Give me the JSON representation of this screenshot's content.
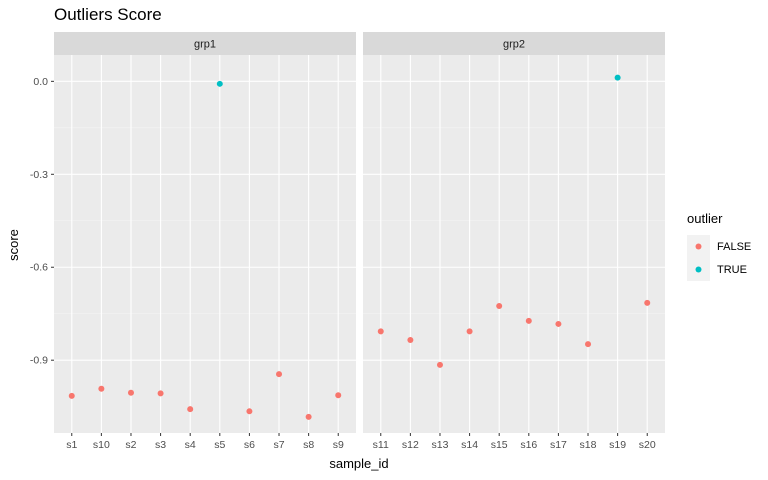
{
  "chart_data": {
    "type": "scatter",
    "title": "Outliers Score",
    "xlabel": "sample_id",
    "ylabel": "score",
    "ylim": [
      -1.135,
      0.085
    ],
    "yticks": [
      0.0,
      -0.3,
      -0.6,
      -0.9
    ],
    "ytick_labels": [
      "0.0",
      "-0.3",
      "-0.6",
      "-0.9"
    ],
    "grid": true,
    "legend": {
      "title": "outlier",
      "position": "right",
      "entries": [
        {
          "label": "FALSE",
          "color": "#F8766D"
        },
        {
          "label": "TRUE",
          "color": "#00BFC4"
        }
      ]
    },
    "panels": [
      {
        "label": "grp1",
        "categories": [
          "s1",
          "s10",
          "s2",
          "s3",
          "s4",
          "s5",
          "s6",
          "s7",
          "s8",
          "s9"
        ],
        "values": [
          -1.015,
          -0.992,
          -1.005,
          -1.007,
          -1.058,
          -0.008,
          -1.065,
          -0.945,
          -1.083,
          -1.013
        ],
        "outlier": [
          false,
          false,
          false,
          false,
          false,
          true,
          false,
          false,
          false,
          false
        ]
      },
      {
        "label": "grp2",
        "categories": [
          "s11",
          "s12",
          "s13",
          "s14",
          "s15",
          "s16",
          "s17",
          "s18",
          "s19",
          "s20"
        ],
        "values": [
          -0.807,
          -0.835,
          -0.915,
          -0.807,
          -0.725,
          -0.773,
          -0.783,
          -0.848,
          0.012,
          -0.715
        ],
        "outlier": [
          false,
          false,
          false,
          false,
          false,
          false,
          false,
          false,
          true,
          false
        ]
      }
    ]
  },
  "colors": {
    "panel_bg": "#EBEBEB",
    "strip_bg": "#D9D9D9",
    "grid_major": "#FFFFFF",
    "false": "#F8766D",
    "true": "#00BFC4"
  }
}
